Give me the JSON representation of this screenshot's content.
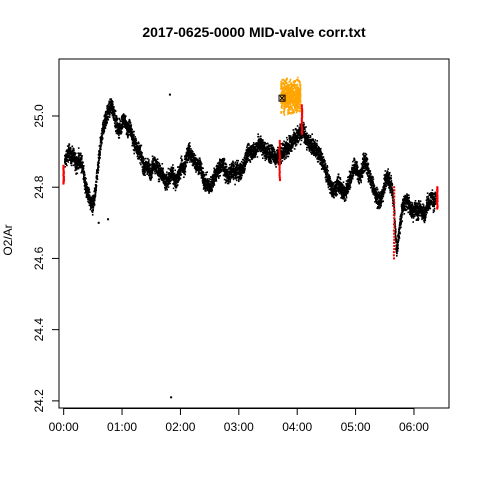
{
  "chart_data": {
    "type": "scatter",
    "title": "2017-0625-0000 MID-valve corr.txt",
    "xlabel": "",
    "ylabel": "O2/Ar",
    "x_unit": "hours",
    "xlim": [
      -0.08,
      6.6
    ],
    "ylim": [
      24.18,
      25.16
    ],
    "x_ticks": [
      0,
      1,
      2,
      3,
      4,
      5,
      6
    ],
    "x_tick_labels": [
      "00:00",
      "01:00",
      "02:00",
      "03:00",
      "04:00",
      "05:00",
      "06:00"
    ],
    "y_ticks": [
      24.2,
      24.4,
      24.6,
      24.8,
      25.0
    ],
    "y_tick_labels": [
      "24.2",
      "24.4",
      "24.6",
      "24.8",
      "25.0"
    ],
    "grid": false,
    "legend": "none",
    "series": [
      {
        "color": "#000000",
        "marker": "point",
        "trace_x": [
          0.02,
          0.06,
          0.1,
          0.14,
          0.18,
          0.22,
          0.26,
          0.3,
          0.34,
          0.38,
          0.42,
          0.46,
          0.5,
          0.54,
          0.58,
          0.62,
          0.66,
          0.7,
          0.74,
          0.78,
          0.82,
          0.86,
          0.9,
          0.94,
          0.98,
          1.02,
          1.06,
          1.1,
          1.14,
          1.18,
          1.22,
          1.26,
          1.3,
          1.34,
          1.38,
          1.42,
          1.46,
          1.5,
          1.54,
          1.58,
          1.62,
          1.66,
          1.7,
          1.74,
          1.78,
          1.82,
          1.86,
          1.9,
          1.94,
          1.98,
          2.02,
          2.06,
          2.1,
          2.14,
          2.18,
          2.22,
          2.26,
          2.3,
          2.34,
          2.38,
          2.42,
          2.46,
          2.5,
          2.54,
          2.58,
          2.62,
          2.66,
          2.7,
          2.74,
          2.78,
          2.82,
          2.86,
          2.9,
          2.94,
          2.98,
          3.02,
          3.06,
          3.1,
          3.14,
          3.18,
          3.22,
          3.26,
          3.3,
          3.34,
          3.38,
          3.42,
          3.46,
          3.5,
          3.54,
          3.58,
          3.62,
          3.66,
          3.7,
          4.1,
          4.14,
          4.18,
          4.22,
          4.26,
          4.3,
          4.34,
          4.38,
          4.42,
          4.46,
          4.5,
          4.54,
          4.58,
          4.62,
          4.66,
          4.7,
          4.74,
          4.78,
          4.82,
          4.86,
          4.9,
          4.94,
          4.98,
          5.02,
          5.06,
          5.1,
          5.14,
          5.18,
          5.22,
          5.26,
          5.3,
          5.34,
          5.38,
          5.42,
          5.46,
          5.5,
          5.54,
          5.58,
          5.62,
          5.66,
          5.7,
          5.74,
          5.78,
          5.82,
          5.86,
          5.9,
          5.94,
          5.98,
          6.02,
          6.06,
          6.1,
          6.14,
          6.18,
          6.22,
          6.26,
          6.3,
          6.34,
          6.38
        ],
        "trace_y": [
          24.87,
          24.89,
          24.9,
          24.88,
          24.89,
          24.86,
          24.88,
          24.87,
          24.84,
          24.8,
          24.78,
          24.76,
          24.75,
          24.78,
          24.84,
          24.9,
          24.95,
          24.98,
          25.0,
          25.02,
          25.03,
          25.01,
          24.98,
          24.96,
          24.97,
          24.99,
          24.98,
          24.96,
          24.97,
          24.94,
          24.92,
          24.91,
          24.9,
          24.88,
          24.85,
          24.86,
          24.85,
          24.84,
          24.87,
          24.86,
          24.85,
          24.84,
          24.83,
          24.81,
          24.82,
          24.83,
          24.84,
          24.82,
          24.82,
          24.84,
          24.86,
          24.85,
          24.88,
          24.9,
          24.89,
          24.88,
          24.87,
          24.86,
          24.86,
          24.83,
          24.81,
          24.81,
          24.8,
          24.81,
          24.83,
          24.84,
          24.85,
          24.86,
          24.86,
          24.84,
          24.83,
          24.84,
          24.85,
          24.84,
          24.85,
          24.84,
          24.85,
          24.87,
          24.89,
          24.9,
          24.9,
          24.9,
          24.91,
          24.92,
          24.92,
          24.91,
          24.9,
          24.9,
          24.89,
          24.9,
          24.88,
          24.89,
          24.89,
          24.96,
          24.94,
          24.93,
          24.92,
          24.92,
          24.91,
          24.9,
          24.89,
          24.88,
          24.86,
          24.84,
          24.82,
          24.8,
          24.79,
          24.8,
          24.81,
          24.8,
          24.79,
          24.78,
          24.8,
          24.82,
          24.84,
          24.86,
          24.85,
          24.83,
          24.84,
          24.87,
          24.87,
          24.84,
          24.82,
          24.8,
          24.78,
          24.77,
          24.76,
          24.78,
          24.81,
          24.83,
          24.82,
          24.8,
          24.75,
          24.62,
          24.66,
          24.72,
          24.75,
          24.76,
          24.76,
          24.74,
          24.73,
          24.74,
          24.73,
          24.74,
          24.73,
          24.72,
          24.75,
          24.76,
          24.77,
          24.76,
          24.77
        ],
        "trace_spread": 0.035,
        "outlier_points": [
          [
            1.82,
            25.06
          ],
          [
            1.84,
            24.21
          ],
          [
            0.76,
            24.71
          ],
          [
            0.6,
            24.7
          ]
        ]
      },
      {
        "color": "#ffa500",
        "marker": "point",
        "range_x": [
          3.72,
          4.06
        ],
        "range_y": [
          25.0,
          25.12
        ],
        "highlight_point": [
          3.74,
          25.05
        ]
      },
      {
        "color": "#ff0000",
        "marker": "point",
        "segments": [
          {
            "x": 0.0,
            "y": [
              24.81,
              24.86
            ]
          },
          {
            "x": 3.7,
            "y": [
              24.82,
              24.93
            ]
          },
          {
            "x": 4.08,
            "y": [
              24.95,
              25.03
            ]
          },
          {
            "x": 5.66,
            "y": [
              24.6,
              24.8
            ]
          },
          {
            "x": 6.4,
            "y": [
              24.74,
              24.8
            ]
          }
        ]
      }
    ]
  }
}
